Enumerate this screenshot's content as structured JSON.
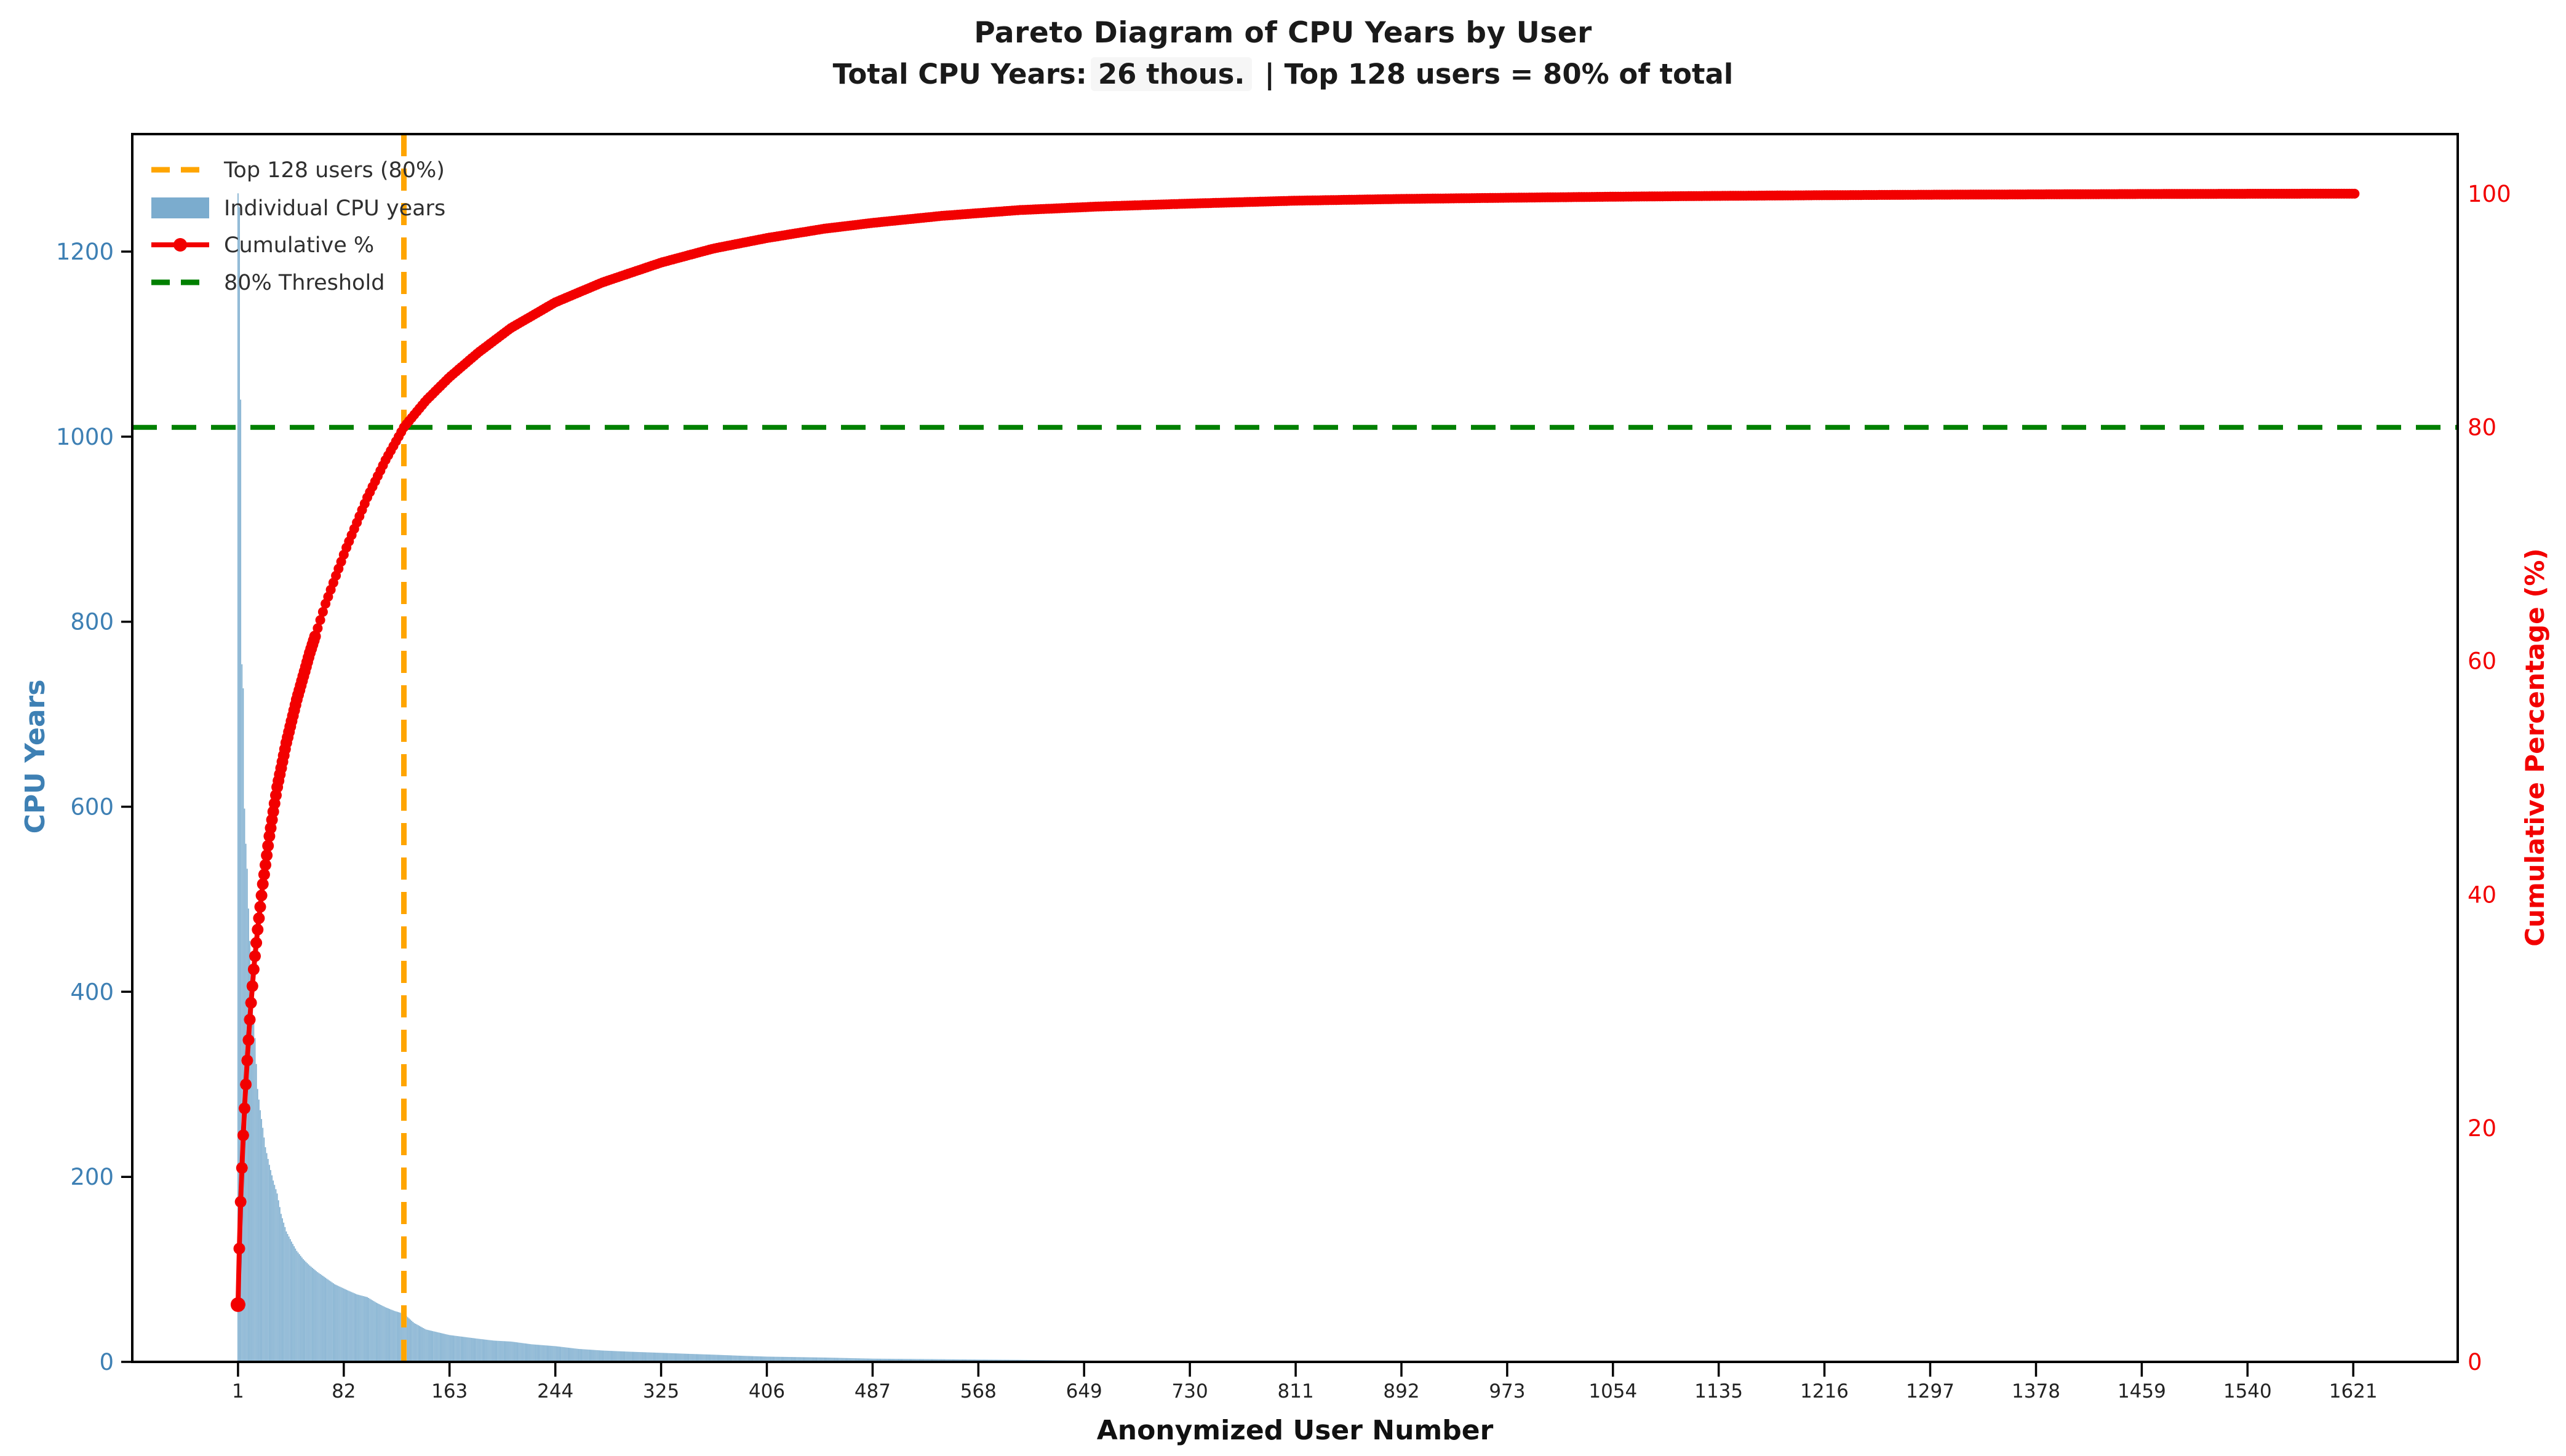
{
  "figure": {
    "title": "Pareto Diagram of CPU Years by User",
    "subtitle_prefix": "Total CPU Years:",
    "subtitle_highlight": "26 thous.",
    "subtitle_suffix": "| Top 128 users = 80% of total"
  },
  "chart_data": {
    "type": "pareto (bar + cumulative line)",
    "title": "Pareto Diagram of CPU Years by User",
    "subtitle": "Total CPU Years: 26 thous.  | Top 128 users = 80% of total",
    "xlabel": "Anonymized User Number",
    "ylabel_left": "CPU Years",
    "ylabel_right": "Cumulative Percentage (%)",
    "x_ticks": [
      1,
      82,
      163,
      244,
      325,
      406,
      487,
      568,
      649,
      730,
      811,
      892,
      973,
      1054,
      1135,
      1216,
      1297,
      1378,
      1459,
      1540,
      1621
    ],
    "y_ticks_left": [
      0,
      200,
      400,
      600,
      800,
      1000,
      1200
    ],
    "y_ticks_right": [
      0,
      20,
      40,
      60,
      80,
      100
    ],
    "xlim": [
      -80,
      1701
    ],
    "ylim_left": [
      0,
      1327
    ],
    "ylim_right": [
      0,
      105.1
    ],
    "grid": false,
    "legend_position": "upper left",
    "n_users": 1622,
    "total_cpu_years": "26 thous.",
    "threshold": {
      "pct": 80,
      "user": 128
    },
    "legend": [
      {
        "label": "Top 128 users (80%)",
        "type": "dashed-line",
        "color": "#ffa500"
      },
      {
        "label": "Individual CPU years",
        "type": "patch",
        "color": "#7bacce"
      },
      {
        "label": "Cumulative %",
        "type": "line-marker",
        "color": "#f20000"
      },
      {
        "label": "80% Threshold",
        "type": "dashed-line",
        "color": "#008000"
      }
    ],
    "colors": {
      "bar": "#7bacce",
      "cumulative_line": "#f20000",
      "threshold_line": "#008000",
      "top_users_line": "#ffa500",
      "left_axis_text": "#3e80b4",
      "right_axis_text": "#f20000",
      "axis_spine": "#000000",
      "x_tick_text": "#222222",
      "title_text": "#1a1a1a",
      "legend_text": "#2f2f2f"
    },
    "bars_samples": [
      [
        1,
        1263
      ],
      [
        2,
        1248
      ],
      [
        3,
        1040
      ],
      [
        4,
        754
      ],
      [
        5,
        728
      ],
      [
        6,
        598
      ],
      [
        7,
        560
      ],
      [
        8,
        533
      ],
      [
        9,
        490
      ],
      [
        10,
        455
      ],
      [
        11,
        420
      ],
      [
        12,
        395
      ],
      [
        13,
        372
      ],
      [
        14,
        350
      ],
      [
        15,
        322
      ],
      [
        16,
        295
      ],
      [
        18,
        272
      ],
      [
        20,
        253
      ],
      [
        22,
        232
      ],
      [
        25,
        213
      ],
      [
        28,
        196
      ],
      [
        31,
        182
      ],
      [
        34,
        160
      ],
      [
        38,
        141
      ],
      [
        42,
        130
      ],
      [
        46,
        120
      ],
      [
        51,
        111
      ],
      [
        56,
        104
      ],
      [
        62,
        97
      ],
      [
        68,
        91
      ],
      [
        75,
        84
      ],
      [
        84,
        78
      ],
      [
        92,
        73
      ],
      [
        100,
        70
      ],
      [
        107,
        64
      ],
      [
        114,
        59
      ],
      [
        121,
        55
      ],
      [
        128,
        52
      ],
      [
        136,
        42
      ],
      [
        145,
        35
      ],
      [
        154,
        32
      ],
      [
        163,
        29
      ],
      [
        174,
        27
      ],
      [
        185,
        25
      ],
      [
        197,
        23
      ],
      [
        210,
        22
      ],
      [
        226,
        19
      ],
      [
        244,
        17
      ],
      [
        262,
        14
      ],
      [
        280,
        12.3
      ],
      [
        301,
        11
      ],
      [
        325,
        9.8
      ],
      [
        344,
        8.8
      ],
      [
        365,
        7.8
      ],
      [
        385,
        6.7
      ],
      [
        406,
        5.7
      ],
      [
        428,
        5.2
      ],
      [
        450,
        4.7
      ],
      [
        468,
        4.1
      ],
      [
        487,
        3.5
      ],
      [
        513,
        3.2
      ],
      [
        540,
        2.9
      ],
      [
        570,
        2.5
      ],
      [
        600,
        2.2
      ],
      [
        630,
        1.7
      ],
      [
        660,
        1.3
      ],
      [
        695,
        1.1
      ],
      [
        730,
        0.95
      ],
      [
        770,
        0.86
      ],
      [
        811,
        0.8
      ],
      [
        850,
        0.65
      ],
      [
        892,
        0.5
      ],
      [
        930,
        0.42
      ],
      [
        973,
        0.35
      ],
      [
        1054,
        0.28
      ],
      [
        1135,
        0.24
      ],
      [
        1216,
        0.2
      ],
      [
        1297,
        0.16
      ],
      [
        1378,
        0.12
      ],
      [
        1459,
        0.09
      ],
      [
        1540,
        0.07
      ],
      [
        1622,
        0.05
      ]
    ],
    "cumulative_samples": [
      [
        1,
        4.9
      ],
      [
        2,
        9.7
      ],
      [
        3,
        13.7
      ],
      [
        4,
        16.6
      ],
      [
        5,
        19.4
      ],
      [
        6,
        21.7
      ],
      [
        8,
        25.8
      ],
      [
        10,
        29.3
      ],
      [
        13,
        33.6
      ],
      [
        16,
        37.0
      ],
      [
        20,
        40.9
      ],
      [
        25,
        45.0
      ],
      [
        31,
        49.2
      ],
      [
        38,
        53.0
      ],
      [
        46,
        56.7
      ],
      [
        56,
        60.7
      ],
      [
        68,
        64.9
      ],
      [
        84,
        69.7
      ],
      [
        100,
        74.0
      ],
      [
        114,
        77.2
      ],
      [
        128,
        80.0
      ],
      [
        145,
        82.3
      ],
      [
        163,
        84.3
      ],
      [
        185,
        86.4
      ],
      [
        210,
        88.5
      ],
      [
        244,
        90.7
      ],
      [
        280,
        92.4
      ],
      [
        325,
        94.1
      ],
      [
        365,
        95.3
      ],
      [
        406,
        96.2
      ],
      [
        450,
        97.0
      ],
      [
        487,
        97.5
      ],
      [
        540,
        98.1
      ],
      [
        600,
        98.6
      ],
      [
        660,
        98.9
      ],
      [
        730,
        99.15
      ],
      [
        811,
        99.4
      ],
      [
        892,
        99.55
      ],
      [
        973,
        99.65
      ],
      [
        1054,
        99.74
      ],
      [
        1135,
        99.81
      ],
      [
        1216,
        99.87
      ],
      [
        1297,
        99.91
      ],
      [
        1378,
        99.94
      ],
      [
        1459,
        99.97
      ],
      [
        1540,
        99.99
      ],
      [
        1622,
        100.0
      ]
    ]
  }
}
